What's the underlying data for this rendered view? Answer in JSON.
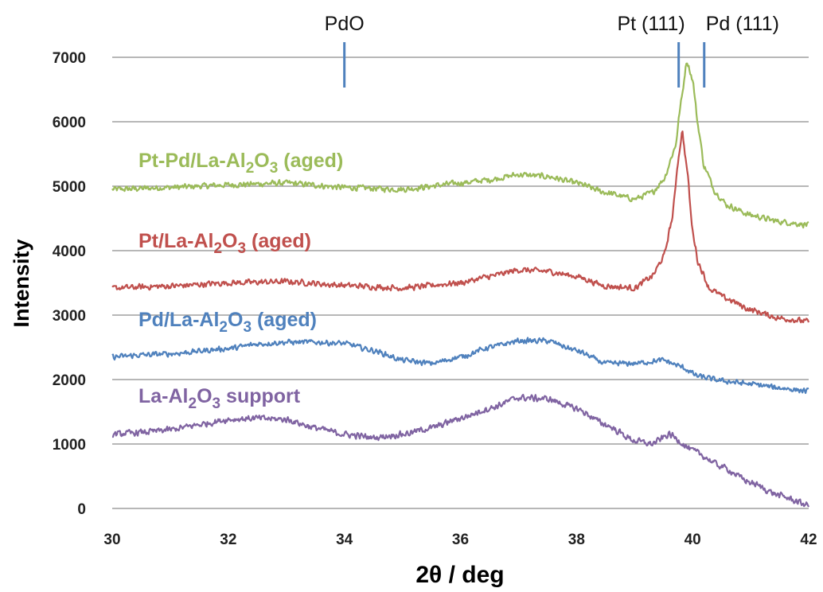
{
  "chart_data": {
    "type": "line",
    "title": "",
    "xlabel": "2θ / deg",
    "ylabel": "Intensity",
    "xlim": [
      30,
      42
    ],
    "ylim": [
      0,
      7000
    ],
    "x_ticks": [
      "30",
      "32",
      "34",
      "36",
      "38",
      "40",
      "42"
    ],
    "y_ticks": [
      "0",
      "1000",
      "2000",
      "3000",
      "4000",
      "5000",
      "6000",
      "7000"
    ],
    "grid": "horizontal",
    "legend": "none (series labelled inline on the plot)",
    "reference_lines": [
      {
        "label": "PdO",
        "x": 34.0,
        "color": "#4f81bd"
      },
      {
        "label": "Pt (111)",
        "x": 39.76,
        "color": "#4f81bd"
      },
      {
        "label": "Pd (111)",
        "x": 40.2,
        "color": "#4f81bd"
      }
    ],
    "series": [
      {
        "name": "Pt-Pd/La-Al2O3 (aged)",
        "label_main": "Pt-Pd/La-Al",
        "label_sub1": "2",
        "label_mid": "O",
        "label_sub2": "3",
        "label_tail": " (aged)",
        "color": "#9bbb59",
        "noise": 60,
        "x": [
          30,
          31,
          32,
          33,
          34,
          35,
          36,
          36.5,
          37,
          37.5,
          38,
          38.5,
          39,
          39.3,
          39.5,
          39.7,
          39.8,
          39.9,
          40.0,
          40.1,
          40.2,
          40.4,
          40.6,
          41,
          41.5,
          42
        ],
        "y": [
          4950,
          4980,
          5020,
          5050,
          4980,
          4950,
          5050,
          5100,
          5180,
          5150,
          5050,
          4900,
          4800,
          4900,
          5100,
          5600,
          6300,
          6950,
          6650,
          5900,
          5300,
          4900,
          4700,
          4550,
          4450,
          4400
        ]
      },
      {
        "name": "Pt/La-Al2O3 (aged)",
        "label_main": "Pt/La-Al",
        "label_sub1": "2",
        "label_mid": "O",
        "label_sub2": "3",
        "label_tail": " (aged)",
        "color": "#c0504d",
        "noise": 60,
        "x": [
          30,
          31,
          32,
          33,
          34,
          35,
          36,
          36.5,
          37,
          37.5,
          38,
          38.5,
          39,
          39.3,
          39.5,
          39.65,
          39.75,
          39.82,
          39.9,
          40.0,
          40.1,
          40.3,
          40.6,
          41,
          41.5,
          42
        ],
        "y": [
          3420,
          3450,
          3500,
          3520,
          3460,
          3420,
          3500,
          3600,
          3700,
          3680,
          3600,
          3450,
          3420,
          3600,
          3900,
          4500,
          5400,
          5850,
          5300,
          4300,
          3800,
          3400,
          3250,
          3080,
          2950,
          2900
        ]
      },
      {
        "name": "Pd/La-Al2O3 (aged)",
        "label_main": "Pd/La-Al",
        "label_sub1": "2",
        "label_mid": "O",
        "label_sub2": "3",
        "label_tail": " (aged)",
        "color": "#4f81bd",
        "noise": 55,
        "x": [
          30,
          30.5,
          31,
          32,
          32.5,
          33,
          33.5,
          34,
          34.5,
          35,
          35.5,
          36,
          36.5,
          37,
          37.5,
          38,
          38.5,
          39,
          39.5,
          39.8,
          40.1,
          40.5,
          41,
          41.5,
          42
        ],
        "y": [
          2350,
          2380,
          2400,
          2480,
          2550,
          2580,
          2580,
          2560,
          2450,
          2300,
          2250,
          2350,
          2500,
          2600,
          2600,
          2450,
          2250,
          2250,
          2300,
          2200,
          2050,
          1980,
          1930,
          1870,
          1820
        ]
      },
      {
        "name": "La-Al2O3 support",
        "label_main": "La-Al",
        "label_sub1": "2",
        "label_mid": "O",
        "label_sub2": "3",
        "label_tail": " support",
        "color": "#8064a2",
        "noise": 65,
        "x": [
          30,
          30.5,
          31,
          31.5,
          32,
          32.5,
          33,
          33.5,
          34,
          34.5,
          35,
          35.5,
          36,
          36.5,
          37,
          37.5,
          38,
          38.5,
          39,
          39.3,
          39.6,
          40,
          40.5,
          41,
          41.5,
          42
        ],
        "y": [
          1150,
          1180,
          1220,
          1300,
          1380,
          1400,
          1380,
          1250,
          1150,
          1100,
          1150,
          1250,
          1400,
          1550,
          1720,
          1700,
          1550,
          1300,
          1050,
          1000,
          1150,
          900,
          650,
          400,
          200,
          50
        ]
      }
    ]
  }
}
